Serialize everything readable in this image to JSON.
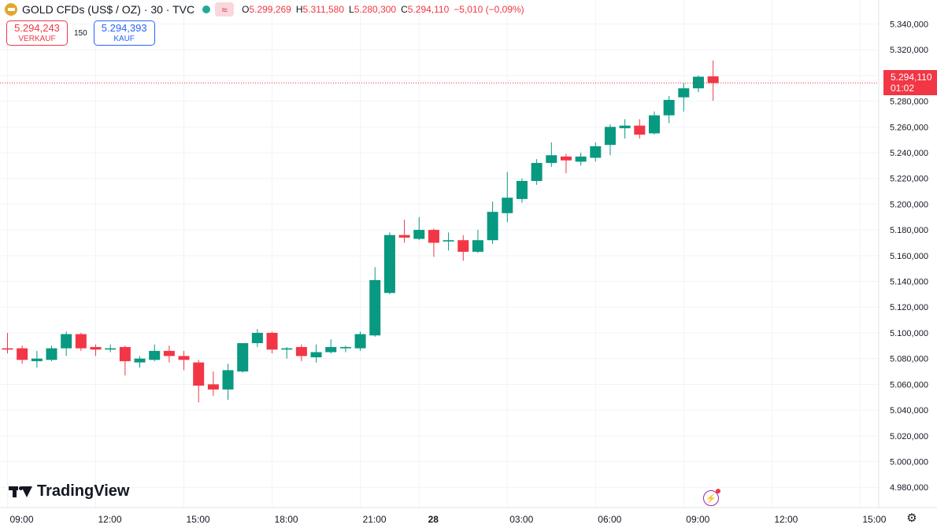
{
  "header": {
    "symbol_icon": "gold-coin-icon",
    "title": "GOLD CFDs (US$ / OZ) · 30 · TVC",
    "badge_glyph": "≈",
    "ohlc": [
      {
        "key": "O",
        "value": "5.299,269"
      },
      {
        "key": "H",
        "value": "5.311,580"
      },
      {
        "key": "L",
        "value": "5.280,300"
      },
      {
        "key": "C",
        "value": "5.294,110"
      },
      {
        "key": "",
        "value": "−5,010 (−0,09%)"
      }
    ]
  },
  "trade": {
    "sell_price": "5.294,243",
    "sell_label": "VERKAUF",
    "spread": "150",
    "buy_price": "5.294,393",
    "buy_label": "KAUF"
  },
  "last_price": {
    "value": 5294.11,
    "price_label": "5.294,110",
    "countdown": "01:02"
  },
  "watermark": {
    "text": "TradingView"
  },
  "colors": {
    "up": "#089981",
    "down": "#f23645",
    "grid": "#f0f3fa",
    "text": "#131722"
  },
  "chart_data": {
    "type": "candlestick",
    "title": "GOLD CFDs (US$ / OZ) · 30 · TVC",
    "ylim": [
      4970,
      5345
    ],
    "y_ticks": [
      4980,
      5000,
      5020,
      5040,
      5060,
      5080,
      5100,
      5120,
      5140,
      5160,
      5180,
      5200,
      5220,
      5240,
      5260,
      5280,
      5300,
      5320,
      5340
    ],
    "y_tick_labels": [
      "4.980,000",
      "5.000,000",
      "5.020,000",
      "5.040,000",
      "5.060,000",
      "5.080,000",
      "5.100,000",
      "5.120,000",
      "5.140,000",
      "5.160,000",
      "5.180,000",
      "5.200,000",
      "5.220,000",
      "5.240,000",
      "5.260,000",
      "5.280,000",
      "5.300,000",
      "5.320,000",
      "5.340,000"
    ],
    "xlim": [
      -0.5,
      60
    ],
    "x_ticks": [
      {
        "index": 0,
        "label": "09:00"
      },
      {
        "index": 6,
        "label": "12:00"
      },
      {
        "index": 12,
        "label": "15:00"
      },
      {
        "index": 18,
        "label": "18:00"
      },
      {
        "index": 24,
        "label": "21:00"
      },
      {
        "index": 28,
        "label": "28"
      },
      {
        "index": 34,
        "label": "03:00"
      },
      {
        "index": 40,
        "label": "06:00"
      },
      {
        "index": 46,
        "label": "09:00"
      },
      {
        "index": 52,
        "label": "12:00"
      },
      {
        "index": 58,
        "label": "15:00"
      }
    ],
    "candles": [
      {
        "o": 5088,
        "h": 5100,
        "l": 5084,
        "c": 5087
      },
      {
        "o": 5088,
        "h": 5090,
        "l": 5076,
        "c": 5079
      },
      {
        "o": 5078,
        "h": 5086,
        "l": 5073,
        "c": 5080
      },
      {
        "o": 5079,
        "h": 5090,
        "l": 5078,
        "c": 5088
      },
      {
        "o": 5088,
        "h": 5101,
        "l": 5082,
        "c": 5099
      },
      {
        "o": 5099,
        "h": 5100,
        "l": 5086,
        "c": 5088
      },
      {
        "o": 5089,
        "h": 5091,
        "l": 5082,
        "c": 5087
      },
      {
        "o": 5087,
        "h": 5091,
        "l": 5085,
        "c": 5088
      },
      {
        "o": 5089,
        "h": 5090,
        "l": 5067,
        "c": 5078
      },
      {
        "o": 5077,
        "h": 5082,
        "l": 5073,
        "c": 5080
      },
      {
        "o": 5079,
        "h": 5091,
        "l": 5078,
        "c": 5086
      },
      {
        "o": 5086,
        "h": 5090,
        "l": 5077,
        "c": 5082
      },
      {
        "o": 5082,
        "h": 5086,
        "l": 5071,
        "c": 5079
      },
      {
        "o": 5077,
        "h": 5079,
        "l": 5046,
        "c": 5059
      },
      {
        "o": 5060,
        "h": 5070,
        "l": 5051,
        "c": 5056
      },
      {
        "o": 5056,
        "h": 5076,
        "l": 5048,
        "c": 5071
      },
      {
        "o": 5070,
        "h": 5092,
        "l": 5069,
        "c": 5092
      },
      {
        "o": 5092,
        "h": 5103,
        "l": 5089,
        "c": 5100
      },
      {
        "o": 5100,
        "h": 5101,
        "l": 5084,
        "c": 5087
      },
      {
        "o": 5087,
        "h": 5089,
        "l": 5080,
        "c": 5088
      },
      {
        "o": 5089,
        "h": 5091,
        "l": 5078,
        "c": 5082
      },
      {
        "o": 5081,
        "h": 5091,
        "l": 5077,
        "c": 5085
      },
      {
        "o": 5085,
        "h": 5095,
        "l": 5084,
        "c": 5089
      },
      {
        "o": 5088,
        "h": 5090,
        "l": 5085,
        "c": 5089
      },
      {
        "o": 5088,
        "h": 5101,
        "l": 5086,
        "c": 5099
      },
      {
        "o": 5098,
        "h": 5151,
        "l": 5097,
        "c": 5141
      },
      {
        "o": 5131,
        "h": 5178,
        "l": 5130,
        "c": 5176
      },
      {
        "o": 5176,
        "h": 5188,
        "l": 5170,
        "c": 5174
      },
      {
        "o": 5173,
        "h": 5190,
        "l": 5172,
        "c": 5180
      },
      {
        "o": 5180,
        "h": 5181,
        "l": 5159,
        "c": 5170
      },
      {
        "o": 5171,
        "h": 5178,
        "l": 5164,
        "c": 5172
      },
      {
        "o": 5172,
        "h": 5176,
        "l": 5156,
        "c": 5163
      },
      {
        "o": 5163,
        "h": 5180,
        "l": 5162,
        "c": 5172
      },
      {
        "o": 5172,
        "h": 5202,
        "l": 5169,
        "c": 5194
      },
      {
        "o": 5193,
        "h": 5225,
        "l": 5186,
        "c": 5205
      },
      {
        "o": 5204,
        "h": 5220,
        "l": 5201,
        "c": 5218
      },
      {
        "o": 5218,
        "h": 5235,
        "l": 5215,
        "c": 5232
      },
      {
        "o": 5232,
        "h": 5248,
        "l": 5229,
        "c": 5238
      },
      {
        "o": 5237,
        "h": 5239,
        "l": 5224,
        "c": 5234
      },
      {
        "o": 5233,
        "h": 5240,
        "l": 5230,
        "c": 5237
      },
      {
        "o": 5236,
        "h": 5248,
        "l": 5233,
        "c": 5245
      },
      {
        "o": 5246,
        "h": 5262,
        "l": 5238,
        "c": 5260
      },
      {
        "o": 5259,
        "h": 5266,
        "l": 5251,
        "c": 5261
      },
      {
        "o": 5261,
        "h": 5266,
        "l": 5251,
        "c": 5254
      },
      {
        "o": 5255,
        "h": 5272,
        "l": 5254,
        "c": 5269
      },
      {
        "o": 5269,
        "h": 5284,
        "l": 5263,
        "c": 5281
      },
      {
        "o": 5283,
        "h": 5294,
        "l": 5272,
        "c": 5290
      },
      {
        "o": 5290,
        "h": 5300,
        "l": 5287,
        "c": 5299
      },
      {
        "o": 5299.269,
        "h": 5311.58,
        "l": 5280.3,
        "c": 5294.11
      }
    ]
  }
}
